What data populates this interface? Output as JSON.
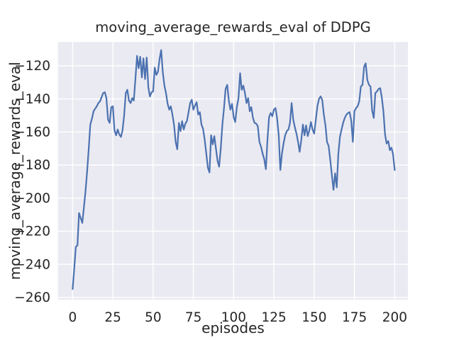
{
  "figure": {
    "title": "moving_average_rewards_eval of DDPG",
    "xlabel": "episodes",
    "ylabel": "moving_average_rewards_eval"
  },
  "chart_data": {
    "type": "line",
    "title": "moving_average_rewards_eval of DDPG",
    "xlabel": "episodes",
    "ylabel": "moving_average_rewards_eval",
    "series_name": "moving_average_rewards_eval",
    "grid": true,
    "legend_position": "none",
    "xlim": [
      -9.1,
      208.2
    ],
    "ylim": [
      -261.5,
      -105.6
    ],
    "xticks": [
      0,
      25,
      50,
      75,
      100,
      125,
      150,
      175,
      200
    ],
    "xtick_labels": [
      "0",
      "25",
      "50",
      "75",
      "100",
      "125",
      "150",
      "175",
      "200"
    ],
    "yticks": [
      -120,
      -140,
      -160,
      -180,
      -200,
      -220,
      -240,
      -260
    ],
    "ytick_labels": [
      "−120",
      "−140",
      "−160",
      "−180",
      "−200",
      "−220",
      "−240",
      "−260"
    ],
    "line_color": "#4c72b0",
    "plot_bg_color": "#eaeaf2",
    "grid_color": "#ffffff",
    "text_color": "#262626",
    "x": [
      0,
      1,
      2,
      3,
      4,
      5,
      6,
      7,
      8,
      9,
      10,
      11,
      12,
      13,
      14,
      15,
      16,
      17,
      18,
      19,
      20,
      21,
      22,
      23,
      24,
      25,
      26,
      27,
      28,
      29,
      30,
      31,
      32,
      33,
      34,
      35,
      36,
      37,
      38,
      39,
      40,
      41,
      42,
      43,
      44,
      45,
      46,
      47,
      48,
      49,
      50,
      51,
      52,
      53,
      54,
      55,
      56,
      57,
      58,
      59,
      60,
      61,
      62,
      63,
      64,
      65,
      66,
      67,
      68,
      69,
      70,
      71,
      72,
      73,
      74,
      75,
      76,
      77,
      78,
      79,
      80,
      81,
      82,
      83,
      84,
      85,
      86,
      87,
      88,
      89,
      90,
      91,
      92,
      93,
      94,
      95,
      96,
      97,
      98,
      99,
      100,
      101,
      102,
      103,
      104,
      105,
      106,
      107,
      108,
      109,
      110,
      111,
      112,
      113,
      114,
      115,
      116,
      117,
      118,
      119,
      120,
      121,
      122,
      123,
      124,
      125,
      126,
      127,
      128,
      129,
      130,
      131,
      132,
      133,
      134,
      135,
      136,
      137,
      138,
      139,
      140,
      141,
      142,
      143,
      144,
      145,
      146,
      147,
      148,
      149,
      150,
      151,
      152,
      153,
      154,
      155,
      156,
      157,
      158,
      159,
      160,
      161,
      162,
      163,
      164,
      165,
      166,
      167,
      168,
      169,
      170,
      171,
      172,
      173,
      174,
      175,
      176,
      177,
      178,
      179,
      180,
      181,
      182,
      183,
      184,
      185,
      186,
      187,
      188,
      189,
      190,
      191,
      192,
      193,
      194,
      195,
      196,
      197,
      198,
      199,
      200
    ],
    "y": [
      -255,
      -243,
      -229.5,
      -228.5,
      -209,
      -212,
      -215,
      -206,
      -196,
      -184,
      -170,
      -155.5,
      -152,
      -147.5,
      -146,
      -144.5,
      -142.5,
      -141.5,
      -139,
      -136.5,
      -136,
      -139.5,
      -152.5,
      -154.5,
      -145,
      -144.5,
      -159,
      -162,
      -158.5,
      -161.5,
      -163,
      -159,
      -150,
      -136.5,
      -134.5,
      -141,
      -142.5,
      -139.5,
      -141,
      -128,
      -114,
      -121.5,
      -114.5,
      -127,
      -115.5,
      -128,
      -115,
      -133,
      -138.5,
      -136,
      -135.5,
      -121,
      -125.5,
      -123.5,
      -116,
      -110.5,
      -124,
      -132,
      -136.5,
      -143,
      -146.5,
      -144.5,
      -149.5,
      -156,
      -166,
      -170.5,
      -154.5,
      -159.5,
      -153.5,
      -158.5,
      -155,
      -153.5,
      -148,
      -142.5,
      -140.5,
      -146.5,
      -144,
      -142,
      -149.5,
      -148,
      -155.5,
      -158,
      -164.5,
      -173,
      -181.5,
      -184.5,
      -162,
      -167.5,
      -162.5,
      -170,
      -177.5,
      -181,
      -170,
      -155.5,
      -145.5,
      -134,
      -131.5,
      -141,
      -146.5,
      -143,
      -151,
      -154,
      -145,
      -139.5,
      -124.5,
      -134.5,
      -132,
      -136.5,
      -142.5,
      -139.5,
      -147.5,
      -145,
      -151.5,
      -154.5,
      -155,
      -156.5,
      -166,
      -169,
      -173,
      -176.5,
      -182.5,
      -165,
      -151,
      -148.5,
      -150.5,
      -146.5,
      -145.5,
      -152,
      -162,
      -183,
      -173,
      -167,
      -162,
      -159.5,
      -158.5,
      -154.5,
      -142.5,
      -152.5,
      -157,
      -161,
      -166,
      -172,
      -165,
      -155.5,
      -162,
      -156,
      -162.5,
      -159,
      -154,
      -158.5,
      -161,
      -153,
      -144.5,
      -140,
      -138.5,
      -140.5,
      -149.5,
      -156,
      -166,
      -168.5,
      -177,
      -186,
      -195,
      -185,
      -193.5,
      -173.5,
      -163,
      -158.5,
      -154.5,
      -151.5,
      -149.5,
      -148.5,
      -148,
      -153,
      -166,
      -147.5,
      -145.5,
      -144.5,
      -141.5,
      -132.5,
      -131.5,
      -120.5,
      -118.5,
      -128.5,
      -131.5,
      -132.5,
      -147,
      -151.5,
      -136.5,
      -135.5,
      -134,
      -133.5,
      -139,
      -147.5,
      -161.5,
      -167,
      -165.5,
      -171,
      -169.5,
      -173.5,
      -183
    ]
  }
}
